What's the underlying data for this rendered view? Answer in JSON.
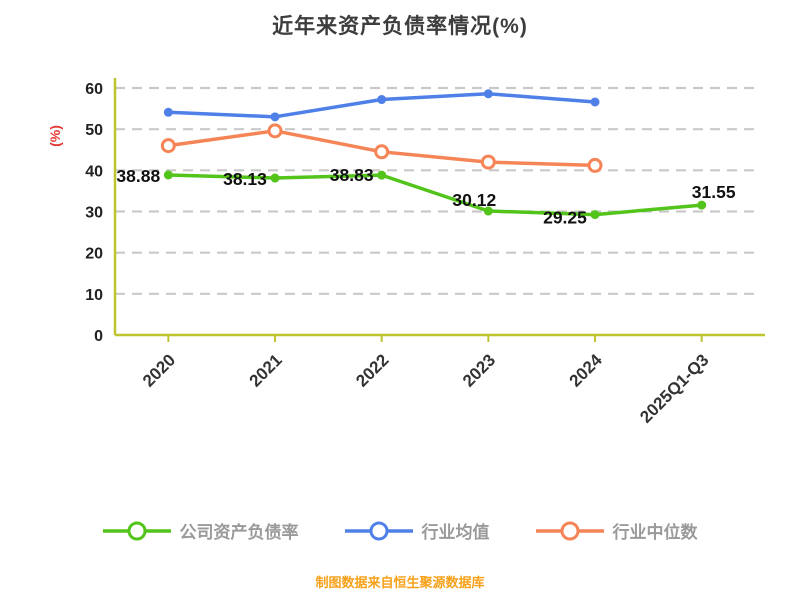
{
  "title": "近年来资产负债率情况(%)",
  "y_axis_title": "(%)",
  "footer": "制图数据来自恒生聚源数据库",
  "palette": {
    "title": "#3d3d3d",
    "axis": "#bdc42e",
    "grid": "#c9c9c9",
    "tick_label": "#222222",
    "x_label": "#333333",
    "y_axis_title": "#e53935",
    "data_label": "#111111",
    "legend_text": "#9a9a9a",
    "footer": "#f7a11a"
  },
  "chart_data": {
    "type": "line",
    "title": "近年来资产负债率情况(%)",
    "ylabel": "(%)",
    "ylim": [
      0,
      60
    ],
    "yticks": [
      0,
      10,
      20,
      30,
      40,
      50,
      60
    ],
    "grid": "dashed-horizontal",
    "legend_position": "bottom",
    "categories": [
      "2020",
      "2021",
      "2022",
      "2023",
      "2024",
      "2025Q1-Q3"
    ],
    "series": [
      {
        "key": "company-debt-ratio",
        "name": "公司资产负债率",
        "color": "#52c41a",
        "marker": "solid",
        "show_labels": true,
        "values": [
          38.88,
          38.13,
          38.83,
          30.12,
          29.25,
          31.55
        ]
      },
      {
        "key": "industry-mean",
        "name": "行业均值",
        "color": "#4f80e8",
        "marker": "solid",
        "show_labels": false,
        "values": [
          54.1,
          53.0,
          57.2,
          58.6,
          56.6,
          null
        ]
      },
      {
        "key": "industry-median",
        "name": "行业中位数",
        "color": "#f58456",
        "marker": "open",
        "show_labels": false,
        "values": [
          46.0,
          49.6,
          44.5,
          42.0,
          41.2,
          null
        ]
      }
    ]
  }
}
